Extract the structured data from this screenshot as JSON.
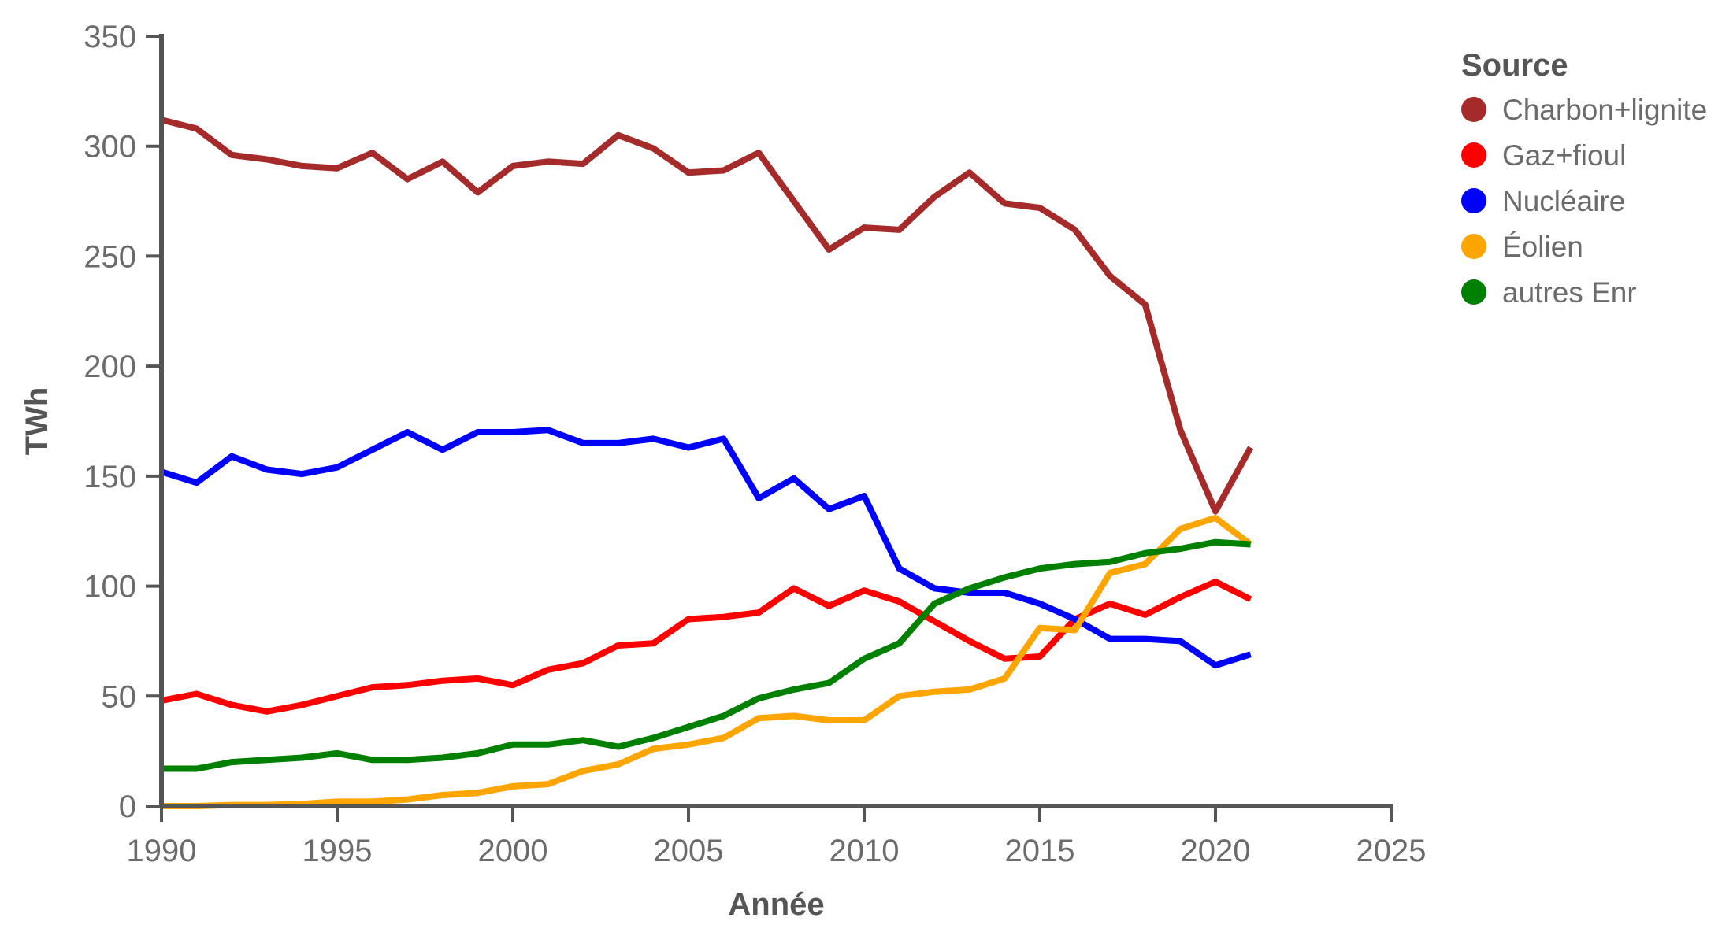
{
  "chart_data": {
    "type": "line",
    "xlabel": "Année",
    "ylabel": "TWh",
    "xlim": [
      1990,
      2025
    ],
    "ylim": [
      0,
      350
    ],
    "x_ticks": [
      1990,
      1995,
      2000,
      2005,
      2010,
      2015,
      2020,
      2025
    ],
    "y_ticks": [
      0,
      50,
      100,
      150,
      200,
      250,
      300,
      350
    ],
    "grid": false,
    "legend": {
      "title": "Source",
      "position": "top-right"
    },
    "x": [
      1990,
      1991,
      1992,
      1993,
      1994,
      1995,
      1996,
      1997,
      1998,
      1999,
      2000,
      2001,
      2002,
      2003,
      2004,
      2005,
      2006,
      2007,
      2008,
      2009,
      2010,
      2011,
      2012,
      2013,
      2014,
      2015,
      2016,
      2017,
      2018,
      2019,
      2020,
      2021
    ],
    "series": [
      {
        "name": "Charbon+lignite",
        "color": "#a52a2a",
        "values": [
          312,
          308,
          296,
          294,
          291,
          290,
          297,
          285,
          293,
          279,
          291,
          293,
          292,
          305,
          299,
          288,
          289,
          297,
          275,
          253,
          263,
          262,
          277,
          288,
          274,
          272,
          262,
          241,
          228,
          171,
          134,
          163
        ]
      },
      {
        "name": "Gaz+fioul",
        "color": "#ff0000",
        "values": [
          48,
          51,
          46,
          43,
          46,
          50,
          54,
          55,
          57,
          58,
          55,
          62,
          65,
          73,
          74,
          85,
          86,
          88,
          99,
          91,
          98,
          93,
          84,
          75,
          67,
          68,
          85,
          92,
          87,
          95,
          102,
          94
        ]
      },
      {
        "name": "Nucléaire",
        "color": "#0000ff",
        "values": [
          152,
          147,
          159,
          153,
          151,
          154,
          162,
          170,
          162,
          170,
          170,
          171,
          165,
          165,
          167,
          163,
          167,
          140,
          149,
          135,
          141,
          108,
          99,
          97,
          97,
          92,
          85,
          76,
          76,
          75,
          64,
          69
        ]
      },
      {
        "name": "Éolien",
        "color": "#ffa500",
        "values": [
          0,
          0,
          0.5,
          0.5,
          1,
          2,
          2,
          3,
          5,
          6,
          9,
          10,
          16,
          19,
          26,
          28,
          31,
          40,
          41,
          39,
          39,
          50,
          52,
          53,
          58,
          81,
          80,
          106,
          110,
          126,
          131,
          119
        ]
      },
      {
        "name": "autres Enr",
        "color": "#008000",
        "values": [
          17,
          17,
          20,
          21,
          22,
          24,
          21,
          21,
          22,
          24,
          28,
          28,
          30,
          27,
          31,
          36,
          41,
          49,
          53,
          56,
          67,
          74,
          92,
          99,
          104,
          108,
          110,
          111,
          115,
          117,
          120,
          119
        ]
      }
    ]
  }
}
